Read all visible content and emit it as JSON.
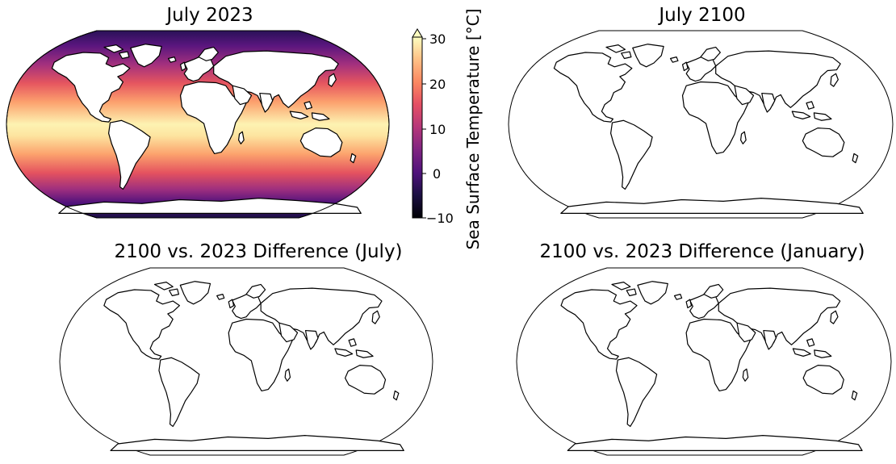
{
  "panels": [
    {
      "title": "July 2023",
      "filled": true
    },
    {
      "title": "July 2100",
      "filled": false
    },
    {
      "title": "2100 vs. 2023 Difference (July)",
      "filled": false
    },
    {
      "title": "2100 vs. 2023 Difference (January)",
      "filled": false
    }
  ],
  "colorbar": {
    "label": "Sea Surface Temperature [°C]",
    "ticks": [
      "30",
      "20",
      "10",
      "0",
      "−10"
    ],
    "colormap": "magma",
    "range": [
      -10,
      30
    ],
    "extend": "max"
  },
  "colors": {
    "land": "#ffffff",
    "coastline": "#000000",
    "ocean_warm": "#fcfdbf",
    "ocean_cold": "#1c1044"
  },
  "chart_data": {
    "type": "heatmap",
    "projection": "robinson",
    "grid": false,
    "legend": "colorbar-right-of-first-map"
  }
}
